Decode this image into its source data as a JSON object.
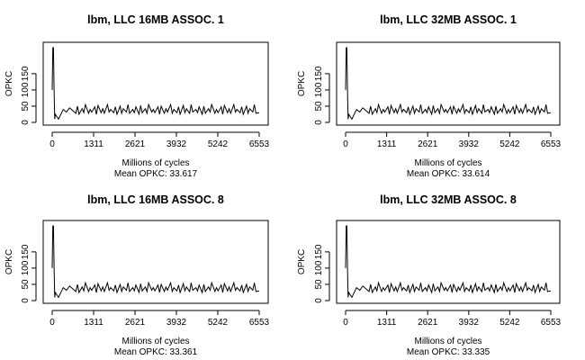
{
  "chart_data": [
    {
      "type": "line",
      "title": "lbm, LLC 16MB ASSOC. 1",
      "xlabel": "Millions of cycles",
      "ylabel": "OPKC",
      "subtitle": "Mean OPKC: 33.617",
      "xlim": [
        0,
        6553
      ],
      "ylim": [
        0,
        230
      ],
      "x_ticks": [
        0,
        1311,
        2621,
        3932,
        5242,
        6553
      ],
      "y_ticks": [
        0,
        50,
        100,
        150
      ],
      "grid": false,
      "series": [
        {
          "x": [
            0,
            20,
            40,
            60,
            80,
            100,
            200,
            300,
            350,
            450,
            550,
            750,
            800,
            850,
            950,
            1000,
            1050,
            1150,
            1200,
            1250,
            1350,
            1400,
            1450,
            1550,
            1600,
            1650,
            1750,
            1800,
            1850,
            1950,
            2000,
            2050,
            2150,
            2200,
            2250,
            2350,
            2400,
            2450,
            2550,
            2600,
            2650,
            2750,
            2800,
            2850,
            2950,
            3000,
            3050,
            3150,
            3200,
            3250,
            3350,
            3400,
            3450,
            3550,
            3600,
            3650,
            3750,
            3800,
            3850,
            3950,
            4000,
            4050,
            4150,
            4200,
            4250,
            4350,
            4400,
            4450,
            4550,
            4600,
            4650,
            4750,
            4800,
            4850,
            4950,
            5000,
            5050,
            5150,
            5200,
            5250,
            5350,
            5400,
            5450,
            5550,
            5600,
            5650,
            5750,
            5800,
            5850,
            5950,
            6000,
            6050,
            6150,
            6200,
            6250,
            6350,
            6400,
            6450,
            6553
          ],
          "y": [
            100,
            230,
            230,
            100,
            10,
            25,
            10,
            30,
            40,
            32,
            45,
            28,
            50,
            25,
            42,
            30,
            55,
            28,
            40,
            32,
            48,
            25,
            52,
            30,
            42,
            28,
            55,
            32,
            40,
            30,
            48,
            25,
            50,
            28,
            42,
            32,
            55,
            28,
            40,
            30,
            48,
            25,
            52,
            30,
            42,
            28,
            55,
            32,
            40,
            30,
            48,
            25,
            50,
            28,
            42,
            32,
            55,
            28,
            40,
            30,
            48,
            25,
            52,
            30,
            42,
            28,
            55,
            32,
            40,
            30,
            48,
            25,
            50,
            28,
            42,
            32,
            55,
            28,
            40,
            30,
            48,
            25,
            52,
            30,
            42,
            28,
            55,
            32,
            40,
            30,
            48,
            25,
            50,
            28,
            42,
            32,
            55,
            28,
            30
          ]
        }
      ]
    },
    {
      "type": "line",
      "title": "lbm, LLC 32MB ASSOC. 1",
      "xlabel": "Millions of cycles",
      "ylabel": "OPKC",
      "subtitle": "Mean OPKC: 33.614",
      "xlim": [
        0,
        6553
      ],
      "ylim": [
        0,
        230
      ],
      "x_ticks": [
        0,
        1311,
        2621,
        3932,
        5242,
        6553
      ],
      "y_ticks": [
        0,
        50,
        100,
        150
      ],
      "grid": false,
      "series": [
        {
          "x": [
            0,
            20,
            40,
            60,
            80,
            100,
            200,
            300,
            350,
            450,
            550,
            750,
            800,
            850,
            950,
            1000,
            1050,
            1150,
            1200,
            1250,
            1350,
            1400,
            1450,
            1550,
            1600,
            1650,
            1750,
            1800,
            1850,
            1950,
            2000,
            2050,
            2150,
            2200,
            2250,
            2350,
            2400,
            2450,
            2550,
            2600,
            2650,
            2750,
            2800,
            2850,
            2950,
            3000,
            3050,
            3150,
            3200,
            3250,
            3350,
            3400,
            3450,
            3550,
            3600,
            3650,
            3750,
            3800,
            3850,
            3950,
            4000,
            4050,
            4150,
            4200,
            4250,
            4350,
            4400,
            4450,
            4550,
            4600,
            4650,
            4750,
            4800,
            4850,
            4950,
            5000,
            5050,
            5150,
            5200,
            5250,
            5350,
            5400,
            5450,
            5550,
            5600,
            5650,
            5750,
            5800,
            5850,
            5950,
            6000,
            6050,
            6150,
            6200,
            6250,
            6350,
            6400,
            6450,
            6553
          ],
          "y": [
            100,
            230,
            230,
            100,
            10,
            25,
            10,
            30,
            40,
            32,
            45,
            28,
            50,
            25,
            42,
            30,
            55,
            28,
            40,
            32,
            48,
            25,
            52,
            30,
            42,
            28,
            55,
            32,
            40,
            30,
            48,
            25,
            50,
            28,
            42,
            32,
            55,
            28,
            40,
            30,
            48,
            25,
            52,
            30,
            42,
            28,
            55,
            32,
            40,
            30,
            48,
            25,
            50,
            28,
            42,
            32,
            55,
            28,
            40,
            30,
            48,
            25,
            52,
            30,
            42,
            28,
            55,
            32,
            40,
            30,
            48,
            25,
            50,
            28,
            42,
            32,
            55,
            28,
            40,
            30,
            48,
            25,
            52,
            30,
            42,
            28,
            55,
            32,
            40,
            30,
            48,
            25,
            50,
            28,
            42,
            32,
            55,
            28,
            30
          ]
        }
      ]
    },
    {
      "type": "line",
      "title": "lbm, LLC 16MB ASSOC. 8",
      "xlabel": "Millions of cycles",
      "ylabel": "OPKC",
      "subtitle": "Mean OPKC: 33.361",
      "xlim": [
        0,
        6553
      ],
      "ylim": [
        0,
        230
      ],
      "x_ticks": [
        0,
        1311,
        2621,
        3932,
        5242,
        6553
      ],
      "y_ticks": [
        0,
        50,
        100,
        150
      ],
      "grid": false,
      "series": [
        {
          "x": [
            0,
            20,
            40,
            60,
            80,
            100,
            200,
            300,
            350,
            450,
            550,
            750,
            800,
            850,
            950,
            1000,
            1050,
            1150,
            1200,
            1250,
            1350,
            1400,
            1450,
            1550,
            1600,
            1650,
            1750,
            1800,
            1850,
            1950,
            2000,
            2050,
            2150,
            2200,
            2250,
            2350,
            2400,
            2450,
            2550,
            2600,
            2650,
            2750,
            2800,
            2850,
            2950,
            3000,
            3050,
            3150,
            3200,
            3250,
            3350,
            3400,
            3450,
            3550,
            3600,
            3650,
            3750,
            3800,
            3850,
            3950,
            4000,
            4050,
            4150,
            4200,
            4250,
            4350,
            4400,
            4450,
            4550,
            4600,
            4650,
            4750,
            4800,
            4850,
            4950,
            5000,
            5050,
            5150,
            5200,
            5250,
            5350,
            5400,
            5450,
            5550,
            5600,
            5650,
            5750,
            5800,
            5850,
            5950,
            6000,
            6050,
            6150,
            6200,
            6250,
            6350,
            6400,
            6450,
            6553
          ],
          "y": [
            100,
            230,
            230,
            100,
            10,
            25,
            10,
            30,
            40,
            32,
            45,
            28,
            50,
            25,
            42,
            30,
            55,
            28,
            40,
            32,
            48,
            25,
            52,
            30,
            42,
            28,
            55,
            32,
            40,
            30,
            48,
            25,
            50,
            28,
            42,
            32,
            55,
            28,
            40,
            30,
            48,
            25,
            52,
            30,
            42,
            28,
            55,
            32,
            40,
            30,
            48,
            25,
            50,
            28,
            42,
            32,
            55,
            28,
            40,
            30,
            48,
            25,
            52,
            30,
            42,
            28,
            55,
            32,
            40,
            30,
            48,
            25,
            50,
            28,
            42,
            32,
            55,
            28,
            40,
            30,
            48,
            25,
            52,
            30,
            42,
            28,
            55,
            32,
            40,
            30,
            48,
            25,
            50,
            28,
            42,
            32,
            55,
            28,
            30
          ]
        }
      ]
    },
    {
      "type": "line",
      "title": "lbm, LLC 32MB ASSOC. 8",
      "xlabel": "Millions of cycles",
      "ylabel": "OPKC",
      "subtitle": "Mean OPKC: 33.335",
      "xlim": [
        0,
        6553
      ],
      "ylim": [
        0,
        230
      ],
      "x_ticks": [
        0,
        1311,
        2621,
        3932,
        5242,
        6553
      ],
      "y_ticks": [
        0,
        50,
        100,
        150
      ],
      "grid": false,
      "series": [
        {
          "x": [
            0,
            20,
            40,
            60,
            80,
            100,
            200,
            300,
            350,
            450,
            550,
            750,
            800,
            850,
            950,
            1000,
            1050,
            1150,
            1200,
            1250,
            1350,
            1400,
            1450,
            1550,
            1600,
            1650,
            1750,
            1800,
            1850,
            1950,
            2000,
            2050,
            2150,
            2200,
            2250,
            2350,
            2400,
            2450,
            2550,
            2600,
            2650,
            2750,
            2800,
            2850,
            2950,
            3000,
            3050,
            3150,
            3200,
            3250,
            3350,
            3400,
            3450,
            3550,
            3600,
            3650,
            3750,
            3800,
            3850,
            3950,
            4000,
            4050,
            4150,
            4200,
            4250,
            4350,
            4400,
            4450,
            4550,
            4600,
            4650,
            4750,
            4800,
            4850,
            4950,
            5000,
            5050,
            5150,
            5200,
            5250,
            5350,
            5400,
            5450,
            5550,
            5600,
            5650,
            5750,
            5800,
            5850,
            5950,
            6000,
            6050,
            6150,
            6200,
            6250,
            6350,
            6400,
            6450,
            6553
          ],
          "y": [
            100,
            230,
            230,
            100,
            10,
            25,
            10,
            30,
            40,
            32,
            45,
            28,
            50,
            25,
            42,
            30,
            55,
            28,
            40,
            32,
            48,
            25,
            52,
            30,
            42,
            28,
            55,
            32,
            40,
            30,
            48,
            25,
            50,
            28,
            42,
            32,
            55,
            28,
            40,
            30,
            48,
            25,
            52,
            30,
            42,
            28,
            55,
            32,
            40,
            30,
            48,
            25,
            50,
            28,
            42,
            32,
            55,
            28,
            40,
            30,
            48,
            25,
            52,
            30,
            42,
            28,
            55,
            32,
            40,
            30,
            48,
            25,
            50,
            28,
            42,
            32,
            55,
            28,
            40,
            30,
            48,
            25,
            52,
            30,
            42,
            28,
            55,
            32,
            40,
            30,
            48,
            25,
            50,
            28,
            42,
            32,
            55,
            28,
            30
          ]
        }
      ]
    }
  ]
}
